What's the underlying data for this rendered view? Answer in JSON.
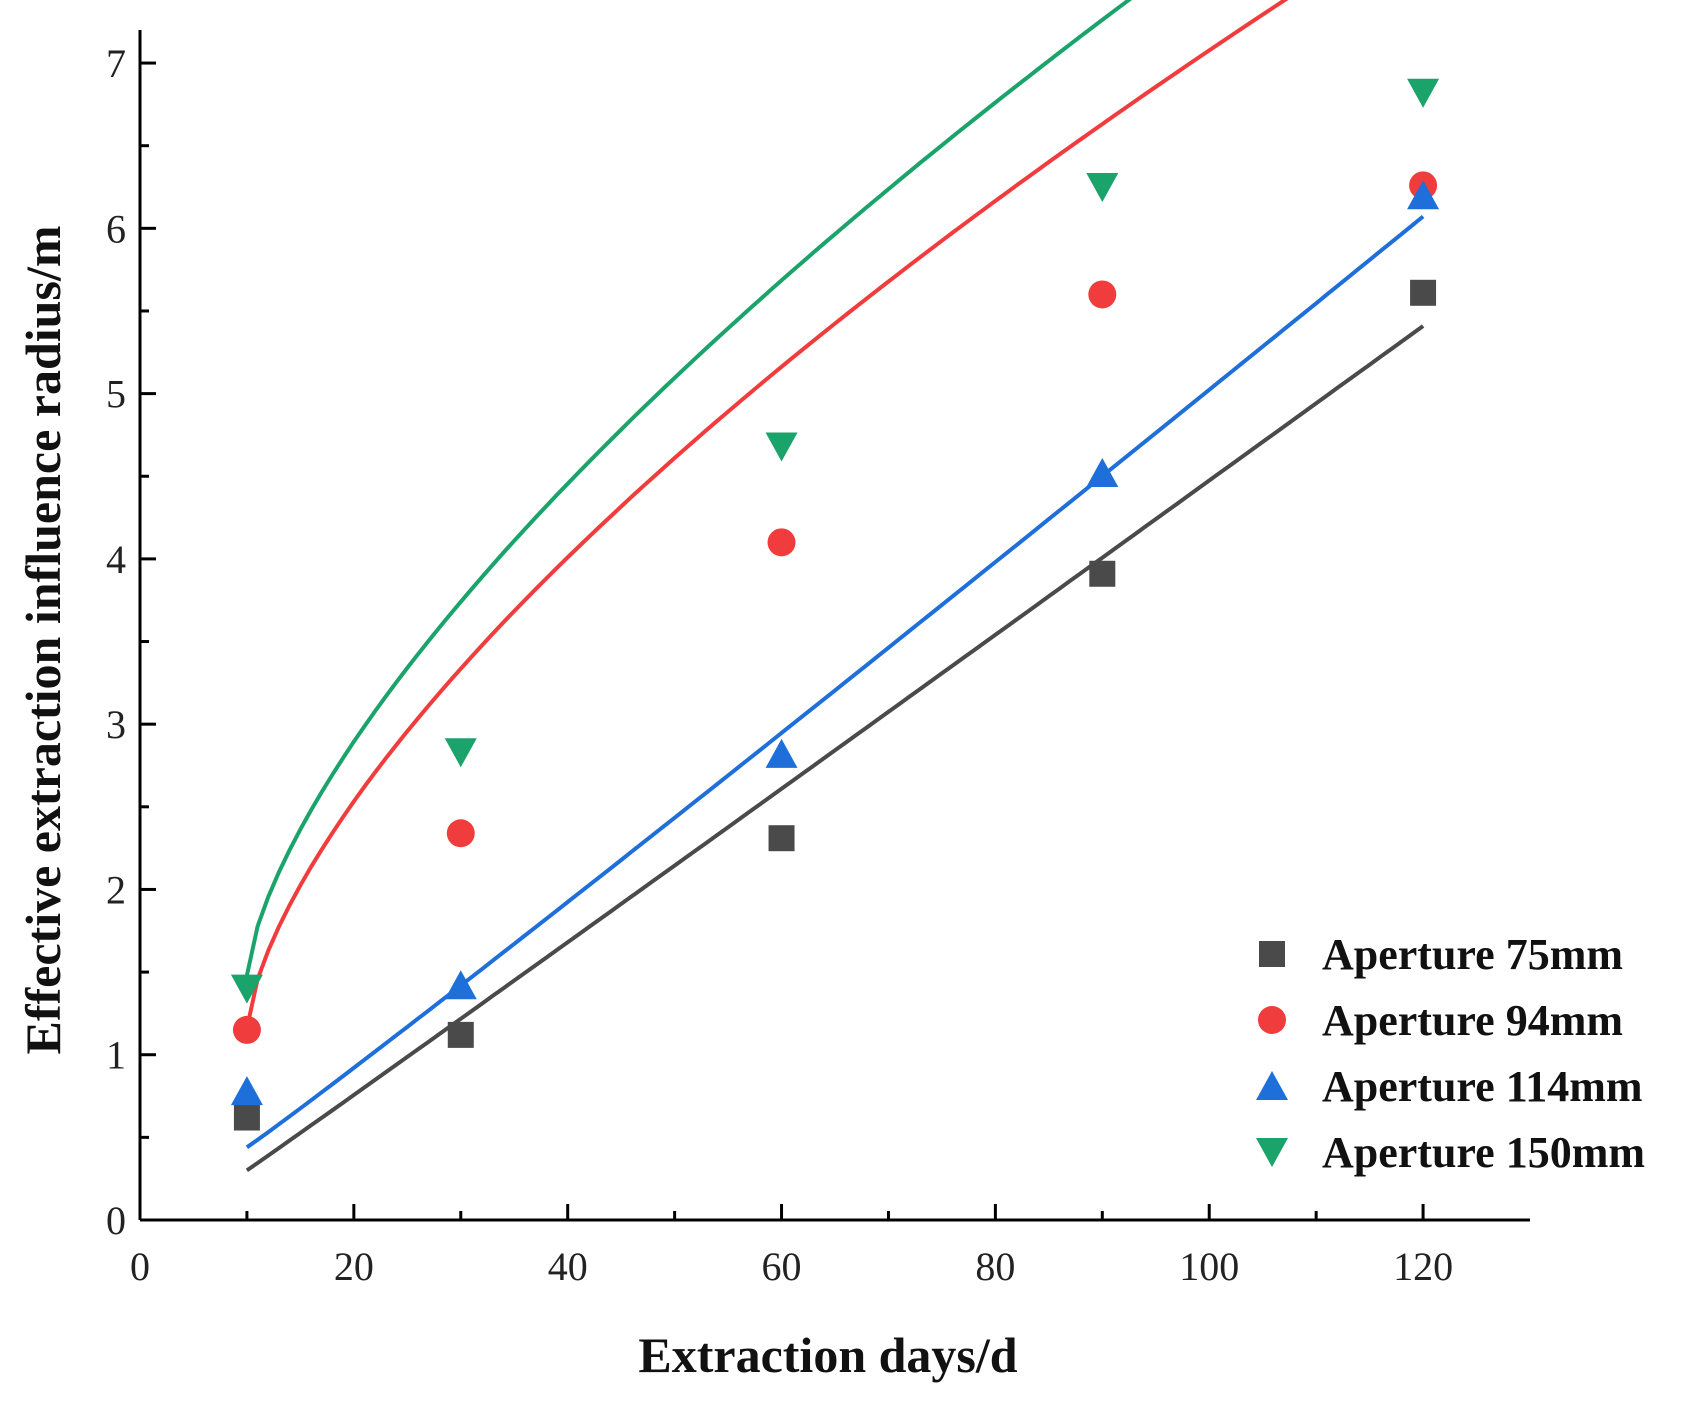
{
  "chart_data": {
    "type": "scatter",
    "title": "",
    "xlabel": "Extraction days/d",
    "ylabel": "Effective extraction influence radius/m",
    "xlim": [
      0,
      130
    ],
    "ylim": [
      0,
      7.2
    ],
    "xticks": [
      0,
      20,
      40,
      60,
      80,
      100,
      120
    ],
    "yticks": [
      0,
      1,
      2,
      3,
      4,
      5,
      6,
      7
    ],
    "grid": false,
    "legend_position": "bottom-right",
    "x": [
      10,
      30,
      60,
      90,
      120
    ],
    "series": [
      {
        "name": "Aperture 75mm",
        "marker": "square",
        "color": "#4a4a4a",
        "values": [
          0.62,
          1.12,
          2.31,
          3.91,
          5.61
        ],
        "fit": {
          "model": "power",
          "a": 0.0449,
          "b": 1.0072,
          "c": 0.3,
          "x_range": [
            10,
            120
          ]
        }
      },
      {
        "name": "Aperture 94mm",
        "marker": "circle",
        "color": "#f03c3c",
        "values": [
          1.15,
          2.34,
          4.1,
          5.6,
          6.26
        ],
        "fit": {
          "model": "power",
          "a": 0.2967,
          "b": 0.6651,
          "c": 1.16,
          "x_range": [
            10,
            120
          ]
        }
      },
      {
        "name": "Aperture 114mm",
        "marker": "triangle-up",
        "color": "#1e6fd9",
        "values": [
          0.78,
          1.42,
          2.82,
          4.52,
          6.2
        ],
        "fit": {
          "model": "power",
          "a": 0.0452,
          "b": 1.0265,
          "c": 0.44,
          "x_range": [
            10,
            120
          ]
        }
      },
      {
        "name": "Aperture 150mm",
        "marker": "triangle-down",
        "color": "#1aa36b",
        "values": [
          1.4,
          2.83,
          4.68,
          6.25,
          6.82
        ],
        "fit": {
          "model": "power",
          "a": 0.2972,
          "b": 0.6773,
          "c": 1.48,
          "x_range": [
            10,
            120
          ]
        }
      }
    ]
  }
}
